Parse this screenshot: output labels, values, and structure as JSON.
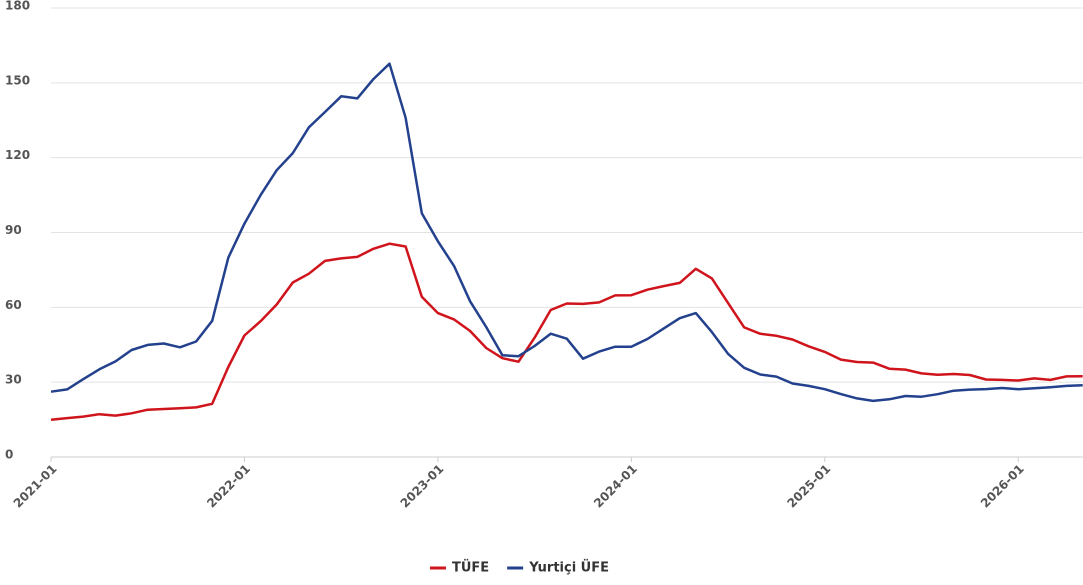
{
  "chart_data": {
    "type": "line",
    "x": [
      "2021-01",
      "2021-02",
      "2021-03",
      "2021-04",
      "2021-05",
      "2021-06",
      "2021-07",
      "2021-08",
      "2021-09",
      "2021-10",
      "2021-11",
      "2021-12",
      "2022-01",
      "2022-02",
      "2022-03",
      "2022-04",
      "2022-05",
      "2022-06",
      "2022-07",
      "2022-08",
      "2022-09",
      "2022-10",
      "2022-11",
      "2022-12",
      "2023-01",
      "2023-02",
      "2023-03",
      "2023-04",
      "2023-05",
      "2023-06",
      "2023-07",
      "2023-08",
      "2023-09",
      "2023-10",
      "2023-11",
      "2023-12",
      "2024-01",
      "2024-02",
      "2024-03",
      "2024-04",
      "2024-05",
      "2024-06",
      "2024-07",
      "2024-08",
      "2024-09",
      "2024-10",
      "2024-11",
      "2024-12",
      "2025-01",
      "2025-02",
      "2025-03",
      "2025-04",
      "2025-05",
      "2025-06",
      "2025-07",
      "2025-08",
      "2025-09",
      "2025-10",
      "2025-11",
      "2025-12",
      "2026-01",
      "2026-02",
      "2026-03",
      "2026-04",
      "2026-05"
    ],
    "xticks": [
      "2021-01",
      "2022-01",
      "2023-01",
      "2024-01",
      "2025-01",
      "2026-01"
    ],
    "ylim": [
      0,
      180
    ],
    "yticks": [
      0,
      30,
      60,
      90,
      120,
      150,
      180
    ],
    "grid": true,
    "legend": "bottom",
    "series": [
      {
        "name": "TÜFE",
        "color": "#d0141c",
        "values": [
          14.97,
          15.61,
          16.19,
          17.14,
          16.59,
          17.53,
          18.95,
          19.25,
          19.58,
          19.89,
          21.31,
          36.08,
          48.69,
          54.44,
          61.14,
          69.97,
          73.5,
          78.62,
          79.6,
          80.21,
          83.45,
          85.51,
          84.39,
          64.27,
          57.68,
          55.18,
          50.51,
          43.68,
          39.59,
          38.21,
          47.83,
          58.94,
          61.53,
          61.36,
          61.98,
          64.77,
          64.86,
          67.07,
          68.5,
          69.8,
          75.45,
          71.6,
          61.78,
          51.97,
          49.38,
          48.58,
          47.09,
          44.38,
          42.12,
          39.05,
          38.1,
          37.86,
          35.41,
          35.05,
          33.52,
          32.95,
          33.29,
          32.87,
          31.07,
          30.89,
          30.65,
          31.5,
          30.9,
          32.3,
          32.4
        ]
      },
      {
        "name": "Yurtiçi ÜFE",
        "color": "#23418d",
        "values": [
          26.16,
          27.09,
          31.2,
          35.17,
          38.33,
          42.89,
          44.92,
          45.52,
          43.96,
          46.31,
          54.62,
          79.89,
          93.53,
          105.01,
          114.97,
          121.82,
          132.16,
          138.31,
          144.61,
          143.75,
          151.5,
          157.69,
          136.02,
          97.72,
          86.46,
          76.61,
          62.43,
          52.11,
          40.76,
          40.42,
          44.5,
          49.41,
          47.44,
          39.39,
          42.25,
          44.22,
          44.2,
          47.29,
          51.47,
          55.66,
          57.68,
          50.09,
          41.37,
          35.75,
          33.09,
          32.24,
          29.47,
          28.52,
          27.2,
          25.21,
          23.5,
          22.5,
          23.13,
          24.45,
          24.19,
          25.16,
          26.59,
          27.0,
          27.23,
          27.67,
          27.2,
          27.6,
          28.0,
          28.5,
          28.8
        ]
      }
    ]
  }
}
